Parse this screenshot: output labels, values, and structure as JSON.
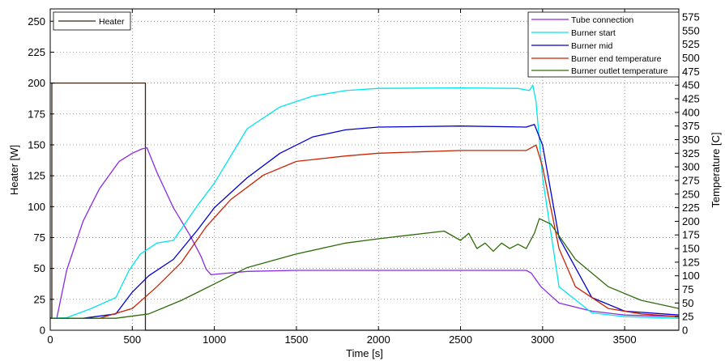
{
  "chart_data": {
    "type": "line",
    "title": "",
    "xlabel": "Time [s]",
    "ylabel_left": "Heater [W]",
    "ylabel_right": "Temperature [C]",
    "xlim": [
      0,
      3830
    ],
    "ylim_left": [
      0,
      260
    ],
    "ylim_right": [
      0,
      590
    ],
    "grid": true,
    "x_ticks": [
      "0",
      "500",
      "1000",
      "1500",
      "2000",
      "2500",
      "3000",
      "3500"
    ],
    "y_ticks_left": [
      "0",
      "25",
      "50",
      "75",
      "100",
      "125",
      "150",
      "175",
      "200",
      "225",
      "250"
    ],
    "y_ticks_right": [
      "0",
      "25",
      "50",
      "75",
      "100",
      "125",
      "150",
      "175",
      "200",
      "225",
      "250",
      "275",
      "300",
      "325",
      "350",
      "375",
      "400",
      "425",
      "450",
      "475",
      "500",
      "525",
      "550",
      "575"
    ],
    "legend_left": {
      "placement": "top-left",
      "entries": [
        "Heater"
      ]
    },
    "legend_right": {
      "placement": "top-right",
      "entries": [
        "Tube connection",
        "Burner start",
        "Burner mid",
        "Burner end temperature",
        "Burner outlet temperature"
      ]
    },
    "series": [
      {
        "name": "Heater",
        "axis": "left",
        "color": "#3b2412",
        "step": true,
        "x": [
          0,
          10,
          10,
          580,
          580,
          3830
        ],
        "y": [
          10,
          10,
          200,
          200,
          0,
          0
        ]
      },
      {
        "name": "Tube connection",
        "axis": "right",
        "color": "#8a2be2",
        "x": [
          0,
          40,
          100,
          200,
          300,
          420,
          500,
          560,
          590,
          650,
          750,
          850,
          920,
          950,
          980,
          1050,
          1200,
          1500,
          2000,
          2500,
          2900,
          2930,
          2990,
          3100,
          3300,
          3500,
          3830
        ],
        "y": [
          22,
          22,
          110,
          200,
          260,
          310,
          325,
          333,
          335,
          290,
          225,
          175,
          135,
          112,
          102,
          104,
          108,
          110,
          110,
          110,
          110,
          105,
          80,
          50,
          35,
          28,
          25
        ]
      },
      {
        "name": "Burner start",
        "axis": "right",
        "color": "#00e5ee",
        "x": [
          0,
          100,
          250,
          400,
          480,
          550,
          650,
          750,
          900,
          1000,
          1100,
          1200,
          1400,
          1600,
          1800,
          2000,
          2500,
          2850,
          2920,
          2940,
          2960,
          3000,
          3100,
          3300,
          3500,
          3830
        ],
        "y": [
          22,
          23,
          40,
          60,
          110,
          140,
          160,
          165,
          230,
          270,
          320,
          370,
          410,
          430,
          440,
          444,
          445,
          444,
          440,
          450,
          420,
          280,
          80,
          32,
          25,
          22
        ]
      },
      {
        "name": "Burner mid",
        "axis": "right",
        "color": "#0000cd",
        "x": [
          0,
          200,
          400,
          500,
          600,
          750,
          900,
          1000,
          1200,
          1400,
          1600,
          1800,
          2000,
          2500,
          2900,
          2950,
          3000,
          3100,
          3300,
          3500,
          3830
        ],
        "y": [
          22,
          22,
          30,
          70,
          100,
          130,
          185,
          225,
          280,
          325,
          355,
          368,
          373,
          375,
          373,
          378,
          340,
          170,
          60,
          35,
          28
        ]
      },
      {
        "name": "Burner end temperature",
        "axis": "right",
        "color": "#cc2200",
        "x": [
          0,
          300,
          500,
          650,
          800,
          950,
          1100,
          1300,
          1500,
          1800,
          2000,
          2500,
          2900,
          2960,
          3000,
          3100,
          3200,
          3400,
          3600,
          3830
        ],
        "y": [
          22,
          22,
          40,
          80,
          125,
          190,
          240,
          285,
          310,
          320,
          325,
          330,
          330,
          340,
          300,
          150,
          80,
          40,
          30,
          25
        ]
      },
      {
        "name": "Burner outlet temperature",
        "axis": "right",
        "color": "#2e6b0a",
        "x": [
          0,
          400,
          600,
          800,
          1000,
          1200,
          1500,
          1800,
          2000,
          2200,
          2400,
          2500,
          2550,
          2600,
          2650,
          2700,
          2750,
          2800,
          2850,
          2900,
          2950,
          2980,
          3050,
          3200,
          3400,
          3600,
          3830
        ],
        "y": [
          22,
          22,
          30,
          55,
          85,
          115,
          140,
          160,
          168,
          175,
          182,
          165,
          178,
          150,
          160,
          145,
          160,
          150,
          158,
          150,
          178,
          205,
          195,
          130,
          80,
          55,
          40
        ]
      }
    ]
  }
}
